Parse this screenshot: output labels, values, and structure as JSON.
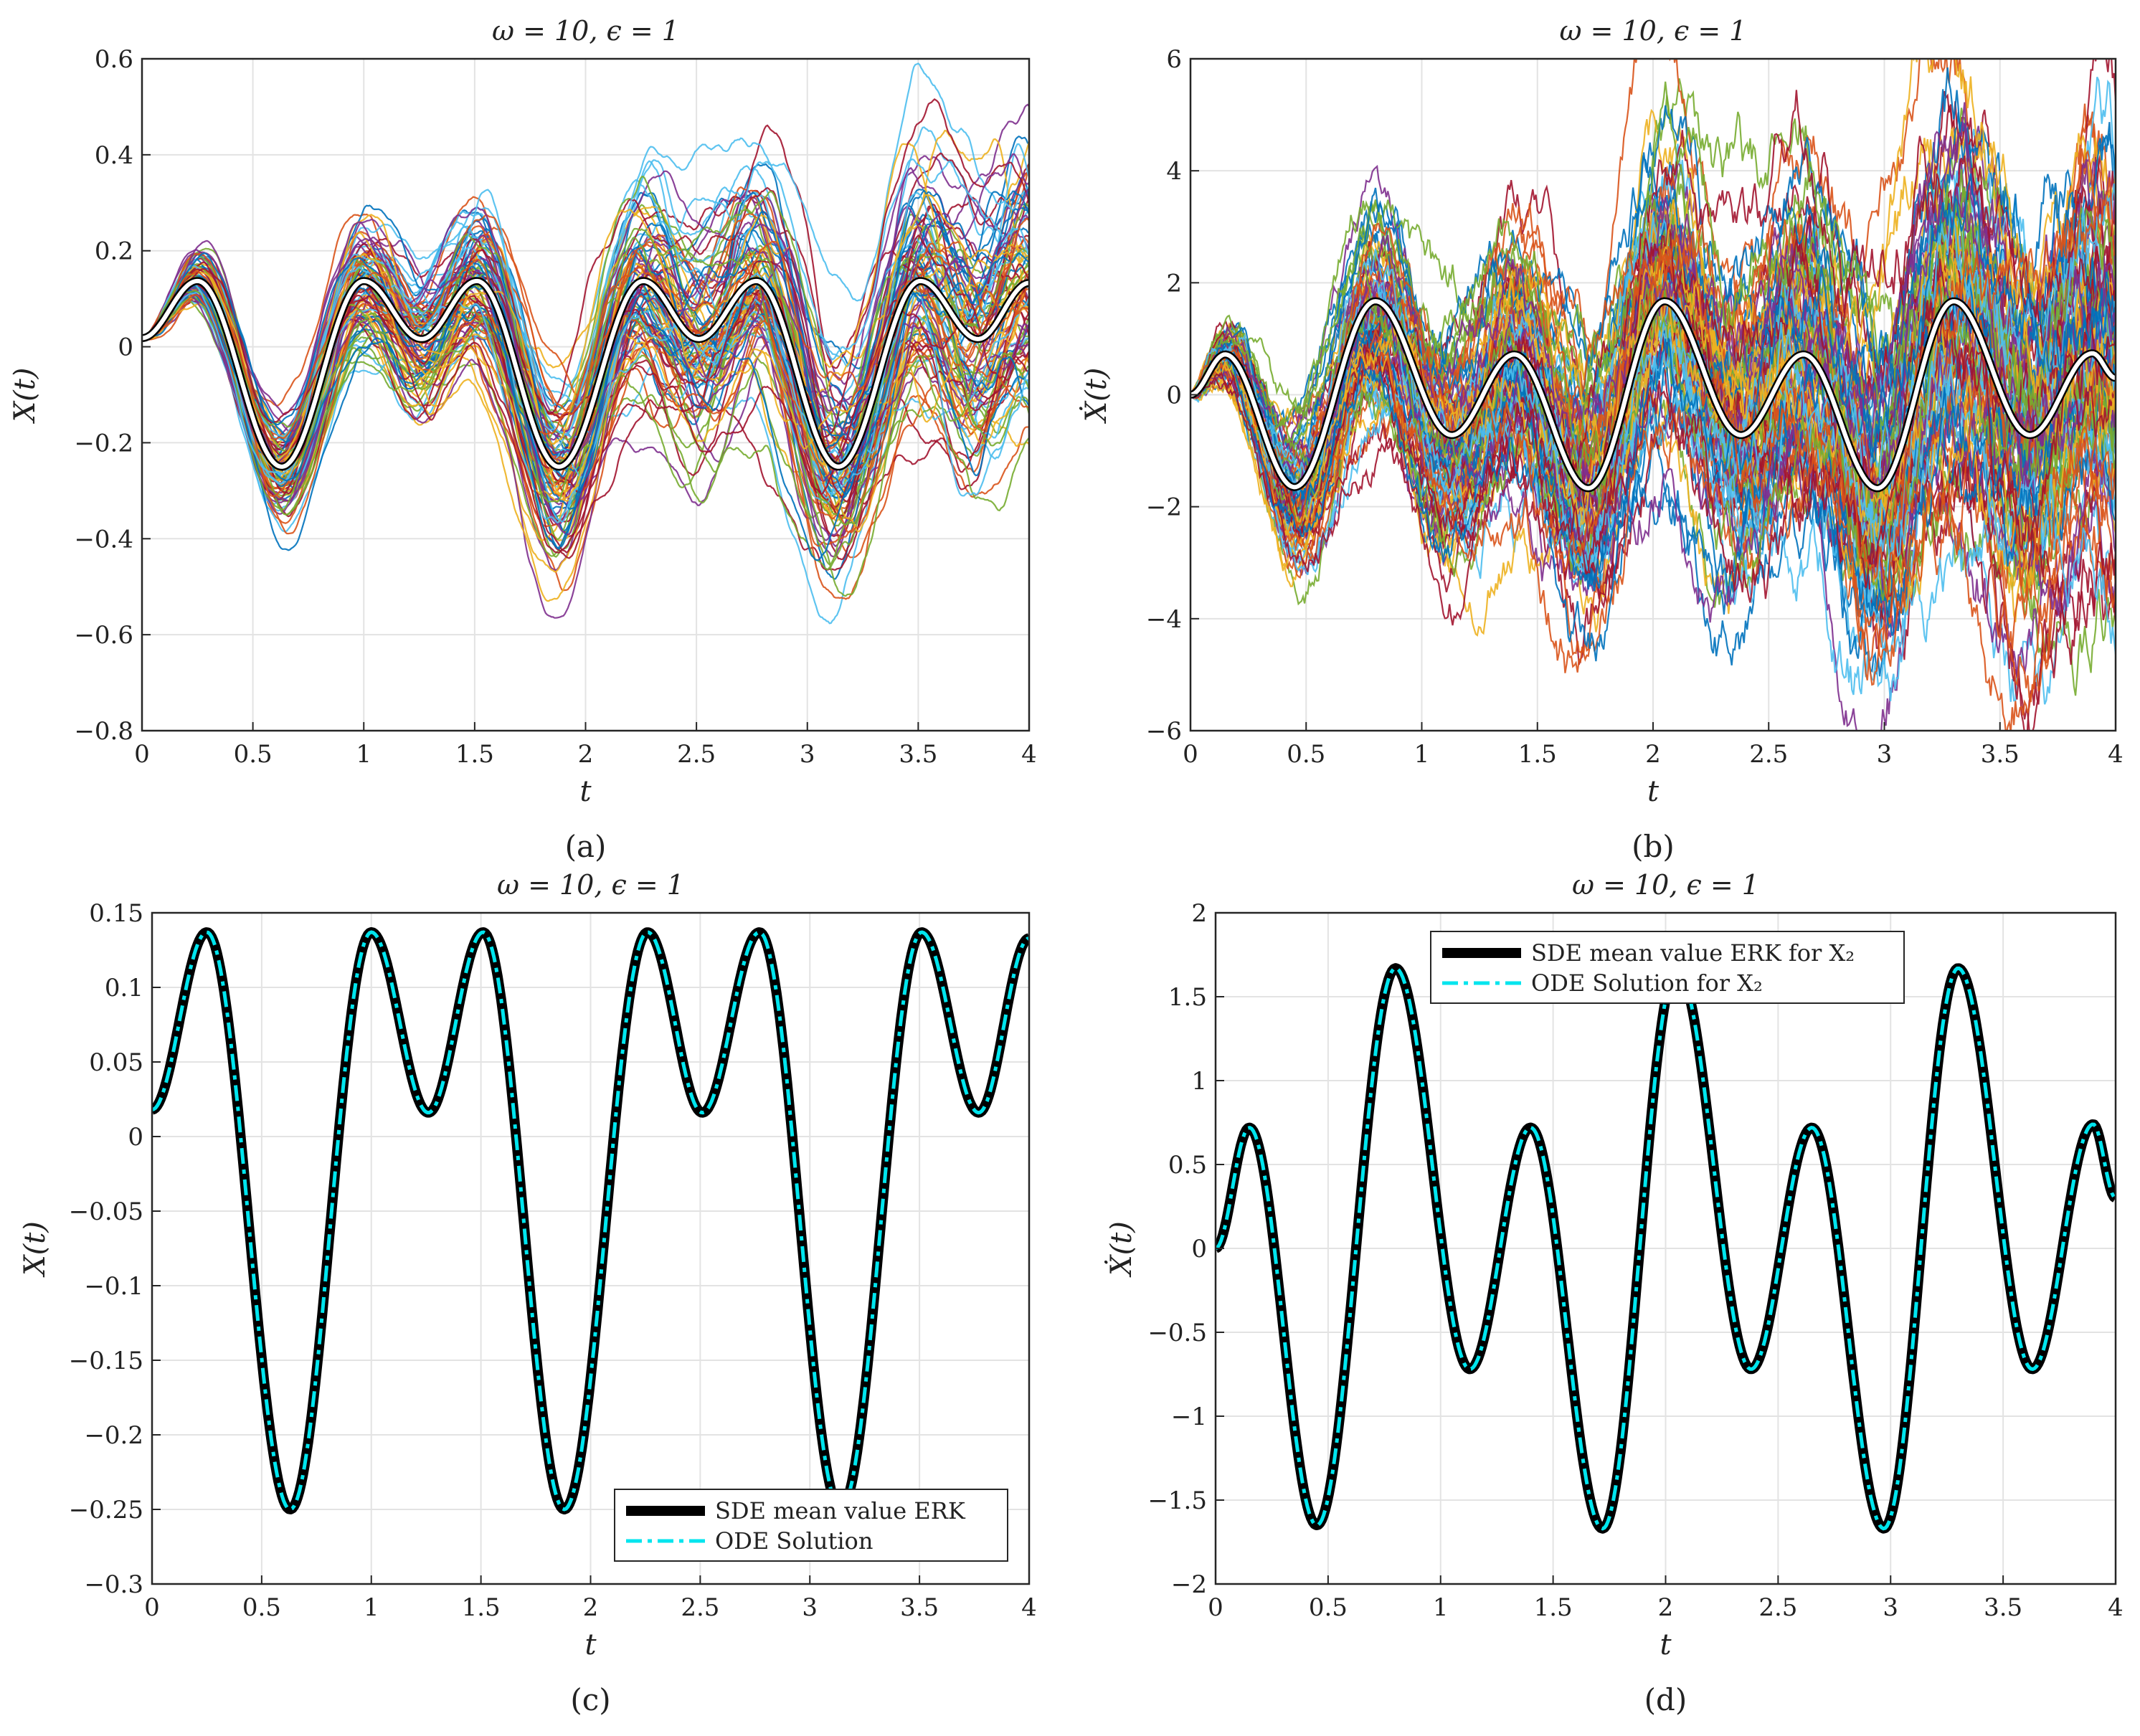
{
  "chart_data": [
    {
      "id": "a",
      "type": "line",
      "caption": "(a)",
      "title": "ω = 10, ϵ = 1",
      "xlabel": "t",
      "ylabel": "X(t)",
      "xlim": [
        0,
        4
      ],
      "ylim": [
        -0.8,
        0.6
      ],
      "xticks": [
        0,
        0.5,
        1,
        1.5,
        2,
        2.5,
        3,
        3.5,
        4
      ],
      "xtick_labels": [
        "0",
        "0.5",
        "1",
        "1.5",
        "2",
        "2.5",
        "3",
        "3.5",
        "4"
      ],
      "yticks": [
        -0.8,
        -0.6,
        -0.4,
        -0.2,
        0,
        0.2,
        0.4,
        0.6
      ],
      "ytick_labels": [
        "−0.8",
        "−0.6",
        "−0.4",
        "−0.2",
        "0",
        "0.2",
        "0.4",
        "0.6"
      ],
      "series": [
        {
          "name": "Stochastic sample paths (ensemble)",
          "style": "thin-multicolor",
          "count": 100,
          "noise_growth": 0.095,
          "smooth": true
        },
        {
          "name": "Mean path",
          "color": "#ffffff",
          "style": "white-outlined",
          "x": [
            0,
            0.25,
            0.63,
            1.0,
            1.26,
            1.51,
            1.88,
            2.26,
            2.51,
            2.77,
            3.14,
            3.51,
            3.77,
            4.0
          ],
          "values": [
            0.018,
            0.137,
            -0.25,
            0.137,
            0.016,
            0.137,
            -0.25,
            0.137,
            0.016,
            0.137,
            -0.25,
            0.137,
            0.016,
            0.133
          ]
        }
      ]
    },
    {
      "id": "b",
      "type": "line",
      "caption": "(b)",
      "title": "ω = 10, ϵ = 1",
      "xlabel": "t",
      "ylabel": "Ẋ(t)",
      "xlim": [
        0,
        4
      ],
      "ylim": [
        -6,
        6
      ],
      "xticks": [
        0,
        0.5,
        1,
        1.5,
        2,
        2.5,
        3,
        3.5,
        4
      ],
      "xtick_labels": [
        "0",
        "0.5",
        "1",
        "1.5",
        "2",
        "2.5",
        "3",
        "3.5",
        "4"
      ],
      "yticks": [
        -6,
        -4,
        -2,
        0,
        2,
        4,
        6
      ],
      "ytick_labels": [
        "−6",
        "−4",
        "−2",
        "0",
        "2",
        "4",
        "6"
      ],
      "series": [
        {
          "name": "Stochastic sample paths (ensemble)",
          "style": "thin-multicolor",
          "count": 100,
          "noise_growth": 0.85,
          "smooth": false
        },
        {
          "name": "Mean path",
          "color": "#ffffff",
          "style": "white-outlined",
          "x": [
            0,
            0.15,
            0.45,
            0.8,
            1.13,
            1.4,
            1.72,
            2.05,
            2.38,
            2.65,
            2.97,
            3.3,
            3.63,
            3.9,
            4.0
          ],
          "values": [
            0,
            0.72,
            -1.65,
            1.67,
            -0.72,
            0.72,
            -1.67,
            1.67,
            -0.72,
            0.72,
            -1.67,
            1.67,
            -0.72,
            0.74,
            0.3
          ]
        }
      ]
    },
    {
      "id": "c",
      "type": "line",
      "caption": "(c)",
      "title": "ω = 10, ϵ = 1",
      "xlabel": "t",
      "ylabel": "X(t)",
      "xlim": [
        0,
        4
      ],
      "ylim": [
        -0.3,
        0.15
      ],
      "xticks": [
        0,
        0.5,
        1,
        1.5,
        2,
        2.5,
        3,
        3.5,
        4
      ],
      "xtick_labels": [
        "0",
        "0.5",
        "1",
        "1.5",
        "2",
        "2.5",
        "3",
        "3.5",
        "4"
      ],
      "yticks": [
        -0.3,
        -0.25,
        -0.2,
        -0.15,
        -0.1,
        -0.05,
        0,
        0.05,
        0.1,
        0.15
      ],
      "ytick_labels": [
        "−0.3",
        "−0.25",
        "−0.2",
        "−0.15",
        "−0.1",
        "−0.05",
        "0",
        "0.05",
        "0.1",
        "0.15"
      ],
      "legend_position": "bottom-right",
      "series": [
        {
          "name": "SDE mean value ERK",
          "color": "#000000",
          "style": "solid-thick",
          "x": [
            0,
            0.25,
            0.63,
            1.0,
            1.26,
            1.51,
            1.88,
            2.26,
            2.51,
            2.77,
            3.14,
            3.51,
            3.77,
            4.0
          ],
          "values": [
            0.018,
            0.137,
            -0.25,
            0.137,
            0.016,
            0.137,
            -0.25,
            0.137,
            0.016,
            0.137,
            -0.25,
            0.137,
            0.016,
            0.133
          ]
        },
        {
          "name": "ODE Solution",
          "color": "#00e5ee",
          "style": "dashdot",
          "x": [
            0,
            0.25,
            0.63,
            1.0,
            1.26,
            1.51,
            1.88,
            2.26,
            2.51,
            2.77,
            3.14,
            3.51,
            3.77,
            4.0
          ],
          "values": [
            0.018,
            0.137,
            -0.25,
            0.137,
            0.016,
            0.137,
            -0.25,
            0.137,
            0.016,
            0.137,
            -0.25,
            0.137,
            0.016,
            0.133
          ]
        }
      ]
    },
    {
      "id": "d",
      "type": "line",
      "caption": "(d)",
      "title": "ω = 10, ϵ = 1",
      "xlabel": "t",
      "ylabel": "Ẋ(t)",
      "xlim": [
        0,
        4
      ],
      "ylim": [
        -2,
        2
      ],
      "xticks": [
        0,
        0.5,
        1,
        1.5,
        2,
        2.5,
        3,
        3.5,
        4
      ],
      "xtick_labels": [
        "0",
        "0.5",
        "1",
        "1.5",
        "2",
        "2.5",
        "3",
        "3.5",
        "4"
      ],
      "yticks": [
        -2,
        -1.5,
        -1,
        -0.5,
        0,
        0.5,
        1,
        1.5,
        2
      ],
      "ytick_labels": [
        "−2",
        "−1.5",
        "−1",
        "−0.5",
        "0",
        "0.5",
        "1",
        "1.5",
        "2"
      ],
      "legend_position": "top-center",
      "series": [
        {
          "name": "SDE mean value ERK for X₂",
          "color": "#000000",
          "style": "solid-thick",
          "x": [
            0,
            0.15,
            0.45,
            0.8,
            1.13,
            1.4,
            1.72,
            2.05,
            2.38,
            2.65,
            2.97,
            3.3,
            3.63,
            3.9,
            4.0
          ],
          "values": [
            0,
            0.72,
            -1.65,
            1.67,
            -0.72,
            0.72,
            -1.67,
            1.67,
            -0.72,
            0.72,
            -1.67,
            1.67,
            -0.72,
            0.74,
            0.3
          ]
        },
        {
          "name": "ODE Solution for X₂",
          "color": "#00e5ee",
          "style": "dashdot",
          "x": [
            0,
            0.15,
            0.45,
            0.8,
            1.13,
            1.4,
            1.72,
            2.05,
            2.38,
            2.65,
            2.97,
            3.3,
            3.63,
            3.9,
            4.0
          ],
          "values": [
            0,
            0.72,
            -1.65,
            1.67,
            -0.72,
            0.72,
            -1.67,
            1.67,
            -0.72,
            0.72,
            -1.67,
            1.67,
            -0.72,
            0.74,
            0.3
          ]
        }
      ]
    }
  ]
}
